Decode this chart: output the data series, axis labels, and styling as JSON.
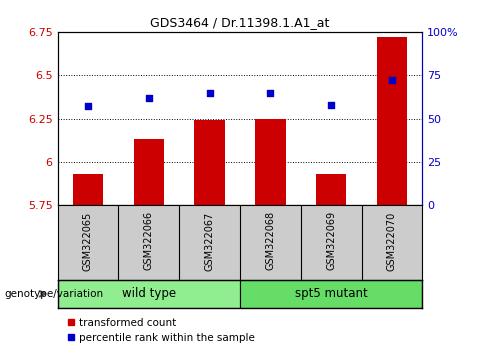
{
  "title": "GDS3464 / Dr.11398.1.A1_at",
  "samples": [
    "GSM322065",
    "GSM322066",
    "GSM322067",
    "GSM322068",
    "GSM322069",
    "GSM322070"
  ],
  "bar_values": [
    5.93,
    6.13,
    6.24,
    6.25,
    5.93,
    6.72
  ],
  "percentile_values": [
    57,
    62,
    65,
    65,
    58,
    72
  ],
  "ylim_left": [
    5.75,
    6.75
  ],
  "ylim_right": [
    0,
    100
  ],
  "yticks_left": [
    5.75,
    6.0,
    6.25,
    6.5,
    6.75
  ],
  "yticks_right": [
    0,
    25,
    50,
    75,
    100
  ],
  "ytick_labels_left": [
    "5.75",
    "6",
    "6.25",
    "6.5",
    "6.75"
  ],
  "ytick_labels_right": [
    "0",
    "25",
    "50",
    "75",
    "100%"
  ],
  "groups": [
    {
      "label": "wild type",
      "samples": [
        0,
        1,
        2
      ],
      "color": "#90EE90"
    },
    {
      "label": "spt5 mutant",
      "samples": [
        3,
        4,
        5
      ],
      "color": "#66DD66"
    }
  ],
  "bar_color": "#CC0000",
  "dot_color": "#0000CC",
  "grid_color": "#000000",
  "group_label": "genotype/variation",
  "legend_bar_label": "transformed count",
  "legend_dot_label": "percentile rank within the sample",
  "background_plot": "#FFFFFF",
  "background_xlabel": "#CCCCCC",
  "xlabel_fontsize": 7.0,
  "ylabel_left_color": "#CC0000",
  "ylabel_right_color": "#0000CC",
  "title_fontsize": 9,
  "bar_width": 0.5
}
